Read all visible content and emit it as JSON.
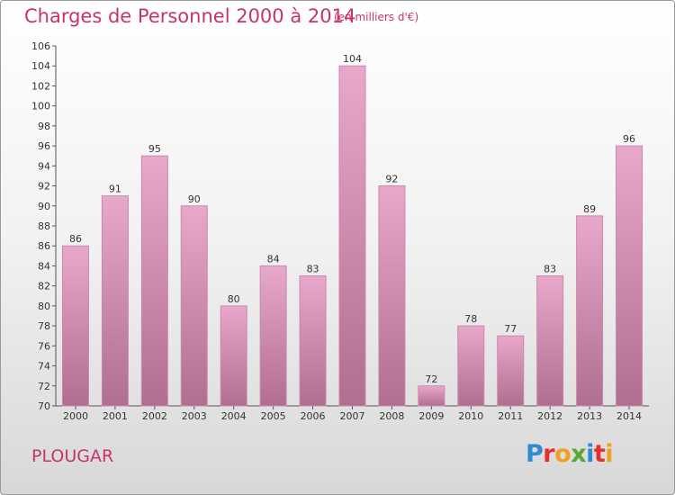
{
  "header": {
    "title": "Charges de Personnel 2000 à 2014",
    "subtitle": "(en milliers d'€)"
  },
  "footer": {
    "location": "PLOUGAR",
    "logo_text": "Proxiti",
    "logo_colors": [
      "#2e8bd0",
      "#e2312e",
      "#f0a020",
      "#5aa832",
      "#2e8bd0",
      "#e2312e",
      "#f0a020"
    ]
  },
  "colors": {
    "bar_top": "#e8a8cc",
    "bar_bottom": "#b06e90",
    "bar_edge": "#c989ab",
    "accent": "#c8336e"
  },
  "chart_data": {
    "type": "bar",
    "title": "Charges de Personnel 2000 à 2014",
    "subtitle": "(en milliers d'€)",
    "categories": [
      "2000",
      "2001",
      "2002",
      "2003",
      "2004",
      "2005",
      "2006",
      "2007",
      "2008",
      "2009",
      "2010",
      "2011",
      "2012",
      "2013",
      "2014"
    ],
    "values": [
      86,
      91,
      95,
      90,
      80,
      84,
      83,
      104,
      92,
      72,
      78,
      77,
      83,
      89,
      96
    ],
    "ylim": [
      70,
      106
    ],
    "yticks": [
      70,
      72,
      74,
      76,
      78,
      80,
      82,
      84,
      86,
      88,
      90,
      92,
      94,
      96,
      98,
      100,
      102,
      104,
      106
    ],
    "xlabel": "",
    "ylabel": "",
    "grid": false,
    "data_labels": true
  }
}
